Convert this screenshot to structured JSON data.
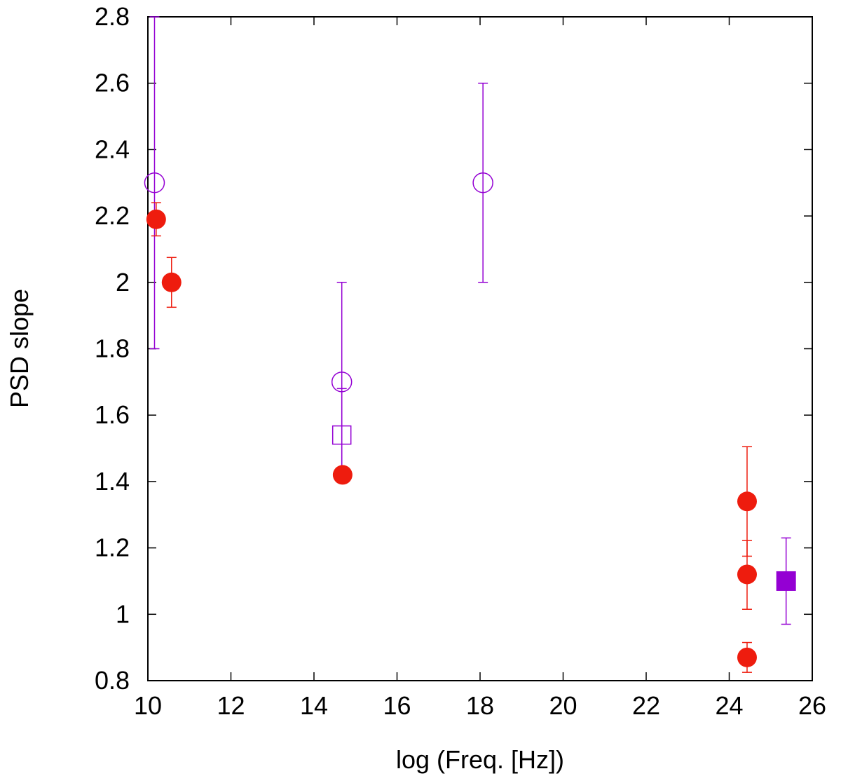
{
  "chart_data": {
    "type": "scatter",
    "title": "",
    "xlabel": "log (Freq. [Hz])",
    "ylabel": "PSD slope",
    "xlim": [
      10,
      26
    ],
    "ylim": [
      0.8,
      2.8
    ],
    "x_ticks": [
      10,
      12,
      14,
      16,
      18,
      20,
      22,
      24,
      26
    ],
    "y_ticks": [
      0.8,
      1,
      1.2,
      1.4,
      1.6,
      1.8,
      2,
      2.2,
      2.4,
      2.6,
      2.8
    ],
    "x_tick_labels": [
      "10",
      "12",
      "14",
      "16",
      "18",
      "20",
      "22",
      "24",
      "26"
    ],
    "y_tick_labels": [
      "0.8",
      "1",
      "1.2",
      "1.4",
      "1.6",
      "1.8",
      "2",
      "2.2",
      "2.4",
      "2.6",
      "2.8"
    ],
    "grid": false,
    "legend": "none",
    "series": [
      {
        "marker": "filled-circle",
        "color": "#ee1c0e",
        "points": [
          {
            "x": 10.2,
            "y": 2.19,
            "ylow": 2.14,
            "yhigh": 2.24
          },
          {
            "x": 10.57,
            "y": 2.0,
            "ylow": 1.925,
            "yhigh": 2.075
          },
          {
            "x": 14.69,
            "y": 1.42,
            "ylow": 1.41,
            "yhigh": 1.43
          },
          {
            "x": 24.43,
            "y": 1.34,
            "ylow": 1.175,
            "yhigh": 1.505
          },
          {
            "x": 24.43,
            "y": 1.12,
            "ylow": 1.015,
            "yhigh": 1.222
          },
          {
            "x": 24.43,
            "y": 0.87,
            "ylow": 0.825,
            "yhigh": 0.915
          }
        ]
      },
      {
        "marker": "open-circle",
        "color": "#9400d3",
        "points": [
          {
            "x": 10.16,
            "y": 2.3,
            "ylow": 1.8,
            "yhigh": 2.8
          },
          {
            "x": 14.67,
            "y": 1.7,
            "ylow": 1.4,
            "yhigh": 2.0
          },
          {
            "x": 18.07,
            "y": 2.3,
            "ylow": 2.0,
            "yhigh": 2.6
          }
        ]
      },
      {
        "marker": "open-square",
        "color": "#9400d3",
        "points": [
          {
            "x": 14.67,
            "y": 1.54,
            "ylow": 1.4,
            "yhigh": 1.68
          }
        ]
      },
      {
        "marker": "filled-square",
        "color": "#9400d3",
        "points": [
          {
            "x": 25.37,
            "y": 1.1,
            "ylow": 0.97,
            "yhigh": 1.23
          }
        ]
      }
    ]
  }
}
